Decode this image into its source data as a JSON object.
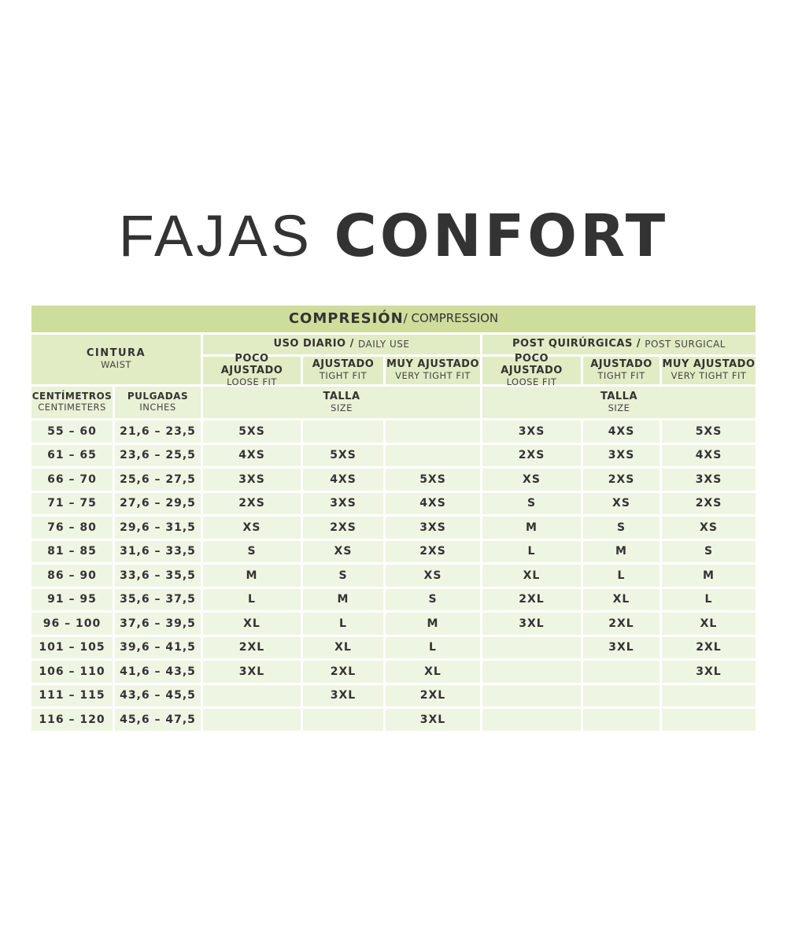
{
  "title": {
    "light": "FAJAS",
    "bold": "CONFORT"
  },
  "table": {
    "compression": {
      "main": "COMPRESIÓN",
      "sub": " / COMPRESSION"
    },
    "waist": {
      "main": "CINTURA",
      "sub": "WAIST"
    },
    "daily_use": {
      "main": "USO DIARIO / ",
      "sub": "DAILY USE"
    },
    "post_surgical": {
      "main": "POST QUIRÚRGICAS / ",
      "sub": "POST SURGICAL"
    },
    "fits": [
      {
        "main": "POCO AJUSTADO",
        "sub": "LOOSE FIT"
      },
      {
        "main": "AJUSTADO",
        "sub": "TIGHT FIT"
      },
      {
        "main": "MUY AJUSTADO",
        "sub": "VERY TIGHT FIT"
      }
    ],
    "centimeters": {
      "main": "CENTÍMETROS",
      "sub": "CENTIMETERS"
    },
    "inches": {
      "main": "PULGADAS",
      "sub": "INCHES"
    },
    "size": {
      "main": "TALLA",
      "sub": "SIZE"
    },
    "rows": [
      [
        "55 – 60",
        "21,6 – 23,5",
        "5XS",
        "",
        "",
        "3XS",
        "4XS",
        "5XS"
      ],
      [
        "61 – 65",
        "23,6 – 25,5",
        "4XS",
        "5XS",
        "",
        "2XS",
        "3XS",
        "4XS"
      ],
      [
        "66 – 70",
        "25,6 – 27,5",
        "3XS",
        "4XS",
        "5XS",
        "XS",
        "2XS",
        "3XS"
      ],
      [
        "71 – 75",
        "27,6 – 29,5",
        "2XS",
        "3XS",
        "4XS",
        "S",
        "XS",
        "2XS"
      ],
      [
        "76 – 80",
        "29,6 – 31,5",
        "XS",
        "2XS",
        "3XS",
        "M",
        "S",
        "XS"
      ],
      [
        "81 – 85",
        "31,6 – 33,5",
        "S",
        "XS",
        "2XS",
        "L",
        "M",
        "S"
      ],
      [
        "86 – 90",
        "33,6 – 35,5",
        "M",
        "S",
        "XS",
        "XL",
        "L",
        "M"
      ],
      [
        "91 – 95",
        "35,6 – 37,5",
        "L",
        "M",
        "S",
        "2XL",
        "XL",
        "L"
      ],
      [
        "96 – 100",
        "37,6 – 39,5",
        "XL",
        "L",
        "M",
        "3XL",
        "2XL",
        "XL"
      ],
      [
        "101 – 105",
        "39,6 – 41,5",
        "2XL",
        "XL",
        "L",
        "",
        "3XL",
        "2XL"
      ],
      [
        "106 – 110",
        "41,6 – 43,5",
        "3XL",
        "2XL",
        "XL",
        "",
        "",
        "3XL"
      ],
      [
        "111 – 115",
        "43,6 – 45,5",
        "",
        "3XL",
        "2XL",
        "",
        "",
        ""
      ],
      [
        "116 – 120",
        "45,6 – 47,5",
        "",
        "",
        "3XL",
        "",
        "",
        ""
      ]
    ]
  },
  "colors": {
    "band": "#cedd9b",
    "header": "#e1ecc5",
    "row": "#eff5e3",
    "text": "#333333"
  }
}
